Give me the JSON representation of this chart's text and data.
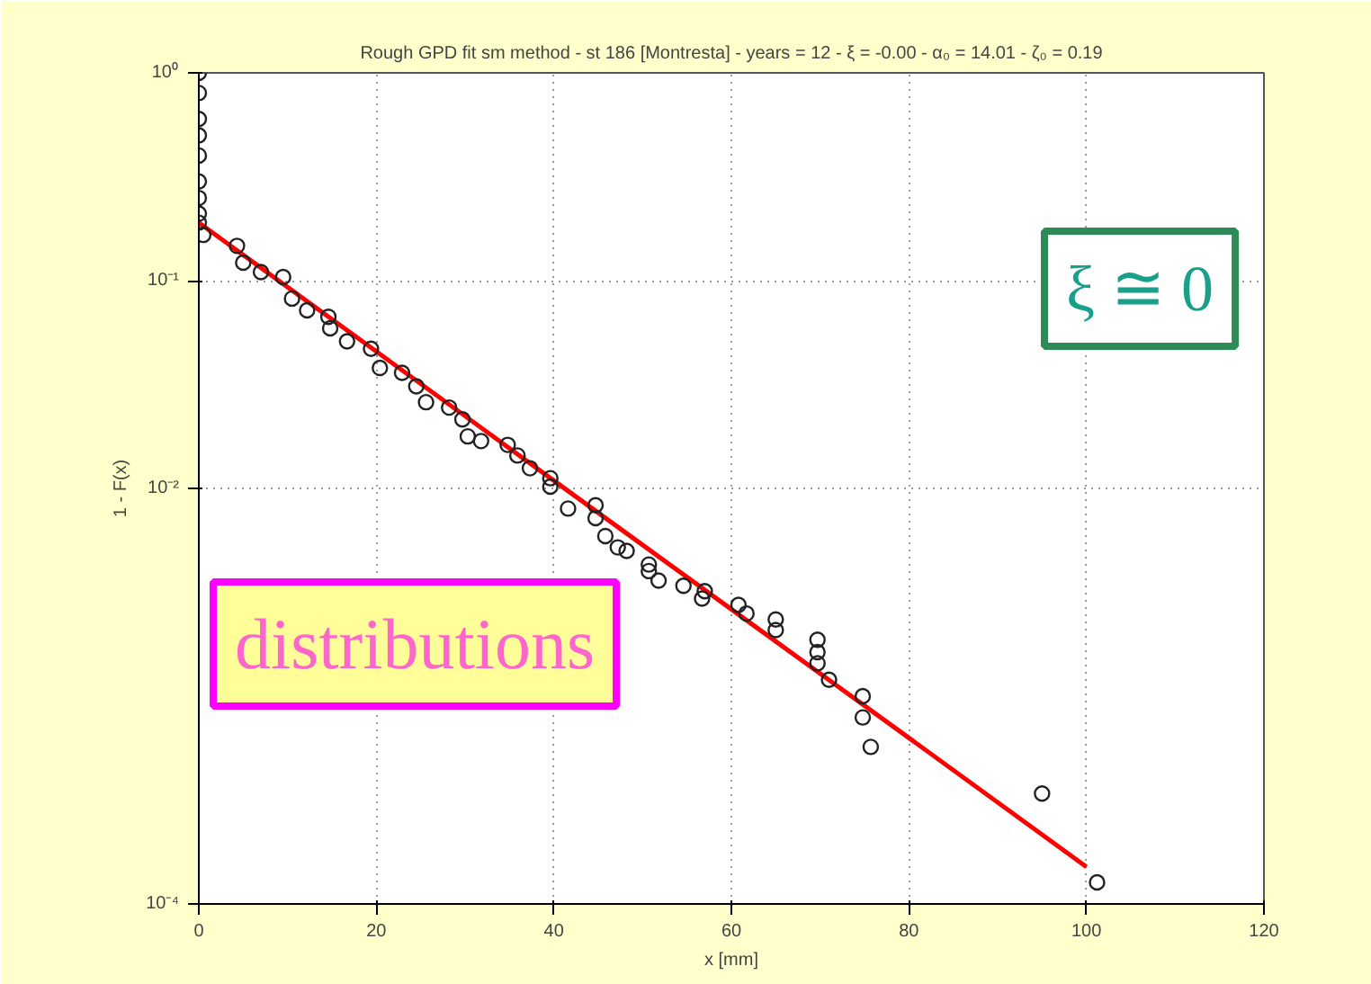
{
  "chart_data": {
    "type": "scatter",
    "title": "Rough GPD fit sm method - st 186 [Montresta] - years = 12 - ξ = -0.00 - α₀ = 14.01 - ζ₀ = 0.19",
    "xlabel": "x [mm]",
    "ylabel": "1 - F(x)",
    "annotations": [
      "ξ ≅ 0",
      "distributions"
    ],
    "series": [
      {
        "color": "#222222",
        "x": [
          0,
          0,
          0,
          0,
          0,
          0,
          0,
          0,
          0,
          0.5,
          4.3,
          5,
          7,
          9.5,
          10.5,
          12.2,
          14.6,
          14.8,
          16.7,
          19.4,
          20.4,
          22.9,
          24.5,
          25.6,
          28.2,
          29.7,
          30.3,
          31.8,
          34.8,
          35.9,
          37.3,
          39.6,
          39.6,
          41.6,
          44.7,
          44.7,
          45.8,
          47.2,
          48.2,
          50.7,
          50.7,
          51.8,
          54.6,
          57,
          56.7,
          60.8,
          61.7,
          65,
          65,
          69.7,
          69.7,
          69.7,
          71,
          74.8,
          74.8,
          75.7,
          95,
          101.2
        ],
        "values": [
          1,
          0.8,
          0.6,
          0.5,
          0.4,
          0.3,
          0.25,
          0.21,
          0.19,
          0.166,
          0.147,
          0.122,
          0.11,
          0.104,
          0.082,
          0.072,
          0.067,
          0.059,
          0.051,
          0.047,
          0.038,
          0.036,
          0.031,
          0.026,
          0.0245,
          0.0215,
          0.0178,
          0.0169,
          0.0162,
          0.0144,
          0.0125,
          0.0112,
          0.0102,
          0.008,
          0.0083,
          0.0072,
          0.0059,
          0.0052,
          0.005,
          0.0043,
          0.004,
          0.0036,
          0.0034,
          0.0032,
          0.00295,
          0.00275,
          0.0025,
          0.00234,
          0.00208,
          0.00187,
          0.00163,
          0.00144,
          0.0012,
          0.001,
          0.00079,
          0.00057,
          0.00034,
          0.000127
        ]
      },
      {
        "type": "line",
        "marker": "none",
        "color": "#ff0000",
        "x": [
          0,
          20,
          40,
          60,
          80,
          100
        ],
        "values": [
          0.19,
          0.0456,
          0.0109,
          0.00262,
          0.00063,
          0.000151
        ]
      }
    ],
    "xlim": [
      0,
      120
    ],
    "xticks": [
      0,
      20,
      40,
      60,
      80,
      100,
      120
    ],
    "ylim": [
      0.0001,
      1
    ],
    "yticks": [
      {
        "value": 0.0001,
        "label": "10⁻⁴"
      },
      {
        "value": 0.01,
        "label": "10⁻²"
      },
      {
        "value": 0.1,
        "label": "10⁻¹"
      },
      {
        "value": 1,
        "label": "10⁰"
      }
    ],
    "log": "y",
    "grid": true,
    "marker": "circle"
  }
}
